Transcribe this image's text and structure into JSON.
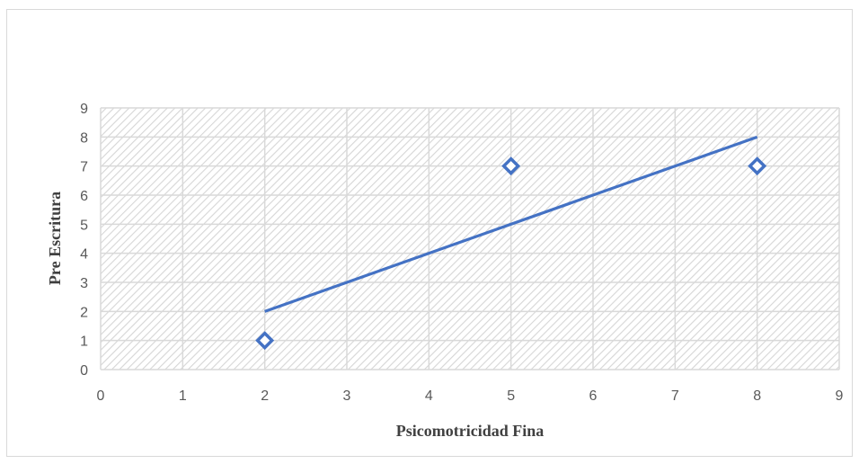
{
  "chart_data": {
    "type": "scatter",
    "title": "",
    "xlabel": "Psicomotricidad Fina",
    "ylabel": "Pre Escritura",
    "xlim": [
      0,
      9
    ],
    "ylim": [
      0,
      9
    ],
    "xticks": [
      "0",
      "1",
      "2",
      "3",
      "4",
      "5",
      "6",
      "7",
      "8",
      "9"
    ],
    "yticks": [
      "0",
      "1",
      "2",
      "3",
      "4",
      "5",
      "6",
      "7",
      "8",
      "9"
    ],
    "grid": true,
    "legend": "none",
    "points": [
      {
        "x": 2,
        "y": 1
      },
      {
        "x": 5,
        "y": 7
      },
      {
        "x": 8,
        "y": 7
      }
    ],
    "trendline": {
      "x": [
        2,
        8
      ],
      "y": [
        2,
        8
      ]
    },
    "colors": {
      "marker": "#4472C4",
      "trendline": "#4472C4",
      "grid": "#d9d9d9",
      "hatch": "#d9d9d9",
      "frame": "#d9d9d9"
    }
  }
}
